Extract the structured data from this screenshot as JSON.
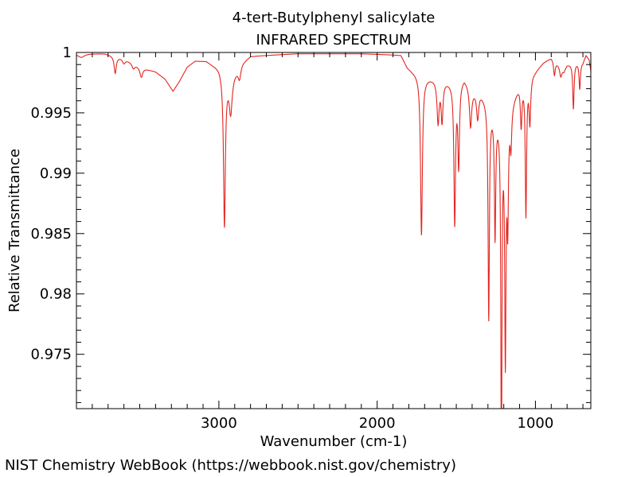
{
  "chart_data": {
    "type": "line",
    "title": "4-tert-Butylphenyl salicylate",
    "subtitle": "INFRARED SPECTRUM",
    "xlabel": "Wavenumber (cm-1)",
    "ylabel": "Relative Transmittance",
    "xlim": [
      3900,
      650
    ],
    "ylim": [
      0.9705,
      1.0
    ],
    "x_ticks": [
      3000,
      2000,
      1000
    ],
    "x_tick_labels": [
      "3000",
      "2000",
      "1000"
    ],
    "y_ticks": [
      1.0,
      0.995,
      0.99,
      0.985,
      0.98,
      0.975
    ],
    "y_tick_labels": [
      "1",
      "0.995",
      "0.99",
      "0.985",
      "0.98",
      "0.975"
    ],
    "grid": false,
    "line_color": "#e3241e",
    "series": [
      {
        "name": "IR spectrum",
        "baseline": [
          [
            3900,
            0.9999
          ],
          [
            3720,
            0.9999
          ],
          [
            3600,
            0.9995
          ],
          [
            3500,
            0.9988
          ],
          [
            3400,
            0.9984
          ],
          [
            3340,
            0.9978
          ],
          [
            3290,
            0.9968
          ],
          [
            3250,
            0.9976
          ],
          [
            3200,
            0.9988
          ],
          [
            3150,
            0.9993
          ],
          [
            3080,
            0.9993
          ],
          [
            3040,
            0.999
          ],
          [
            3000,
            0.9988
          ],
          [
            2930,
            0.9975
          ],
          [
            2900,
            0.9983
          ],
          [
            2850,
            0.9992
          ],
          [
            2800,
            0.9997
          ],
          [
            2500,
            0.9999
          ],
          [
            2100,
            0.9999
          ],
          [
            1850,
            0.9998
          ],
          [
            1810,
            0.9988
          ],
          [
            1780,
            0.9985
          ],
          [
            1700,
            0.998
          ],
          [
            1600,
            0.9978
          ],
          [
            1500,
            0.9975
          ],
          [
            1450,
            0.998
          ],
          [
            1400,
            0.997
          ],
          [
            1350,
            0.9968
          ],
          [
            1300,
            0.996
          ],
          [
            1250,
            0.995
          ],
          [
            1200,
            0.9945
          ],
          [
            1150,
            0.996
          ],
          [
            1100,
            0.9975
          ],
          [
            1050,
            0.998
          ],
          [
            1000,
            0.9985
          ],
          [
            950,
            0.9992
          ],
          [
            900,
            0.9996
          ],
          [
            850,
            0.999
          ],
          [
            820,
            0.9985
          ],
          [
            800,
            0.999
          ],
          [
            750,
            0.9992
          ],
          [
            700,
            0.9992
          ],
          [
            680,
            0.9998
          ],
          [
            660,
            0.9994
          ],
          [
            650,
            0.9985
          ]
        ],
        "peaks": [
          [
            3870,
            -0.0003,
            25
          ],
          [
            3655,
            -0.0014,
            8
          ],
          [
            3600,
            -0.0004,
            10
          ],
          [
            3540,
            -0.0004,
            10
          ],
          [
            3490,
            -0.0008,
            10
          ],
          [
            2965,
            -0.0125,
            7
          ],
          [
            2925,
            -0.0025,
            10
          ],
          [
            2870,
            -0.001,
            10
          ],
          [
            1720,
            -0.0132,
            7
          ],
          [
            1615,
            -0.0035,
            8
          ],
          [
            1590,
            -0.0033,
            7
          ],
          [
            1510,
            -0.0115,
            6
          ],
          [
            1485,
            -0.0068,
            6
          ],
          [
            1410,
            -0.0032,
            8
          ],
          [
            1365,
            -0.0022,
            8
          ],
          [
            1295,
            -0.0178,
            5
          ],
          [
            1255,
            -0.0101,
            5
          ],
          [
            1215,
            -0.0295,
            4
          ],
          [
            1190,
            -0.0195,
            5
          ],
          [
            1175,
            -0.0085,
            5
          ],
          [
            1155,
            -0.0032,
            6
          ],
          [
            1090,
            -0.0035,
            6
          ],
          [
            1060,
            -0.0112,
            5
          ],
          [
            1035,
            -0.0038,
            6
          ],
          [
            880,
            -0.0012,
            6
          ],
          [
            840,
            -0.0008,
            8
          ],
          [
            760,
            -0.0038,
            5
          ],
          [
            720,
            -0.0022,
            5
          ]
        ]
      }
    ]
  },
  "footer": {
    "credit": "NIST Chemistry WebBook (https://webbook.nist.gov/chemistry)"
  }
}
